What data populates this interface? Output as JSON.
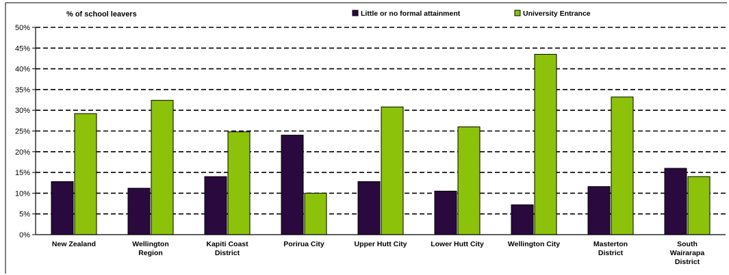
{
  "chart_data": {
    "type": "bar",
    "ylabel": "% of school leavers",
    "ylim": [
      0,
      50
    ],
    "y_ticks": [
      "0%",
      "5%",
      "10%",
      "15%",
      "20%",
      "25%",
      "30%",
      "35%",
      "40%",
      "45%",
      "50%"
    ],
    "y_tick_values": [
      0,
      5,
      10,
      15,
      20,
      25,
      30,
      35,
      40,
      45,
      50
    ],
    "grid": true,
    "legend_position": "top",
    "categories": [
      [
        "New Zealand"
      ],
      [
        "Wellington",
        "Region"
      ],
      [
        "Kapiti Coast",
        "District"
      ],
      [
        "Porirua City"
      ],
      [
        "Upper Hutt City"
      ],
      [
        "Lower Hutt City"
      ],
      [
        "Wellington City"
      ],
      [
        "Masterton",
        "District"
      ],
      [
        "South",
        "Wairarapa",
        "District"
      ]
    ],
    "series": [
      {
        "name": "Little or no formal attainment",
        "color": "#2a0a3e",
        "values": [
          12.8,
          11.2,
          14.0,
          24.0,
          12.8,
          10.5,
          7.2,
          11.6,
          16.0
        ]
      },
      {
        "name": "University Entrance",
        "color": "#8cc20a",
        "values": [
          29.2,
          32.4,
          24.8,
          10.0,
          30.8,
          26.0,
          43.5,
          33.2,
          14.0
        ]
      }
    ]
  }
}
